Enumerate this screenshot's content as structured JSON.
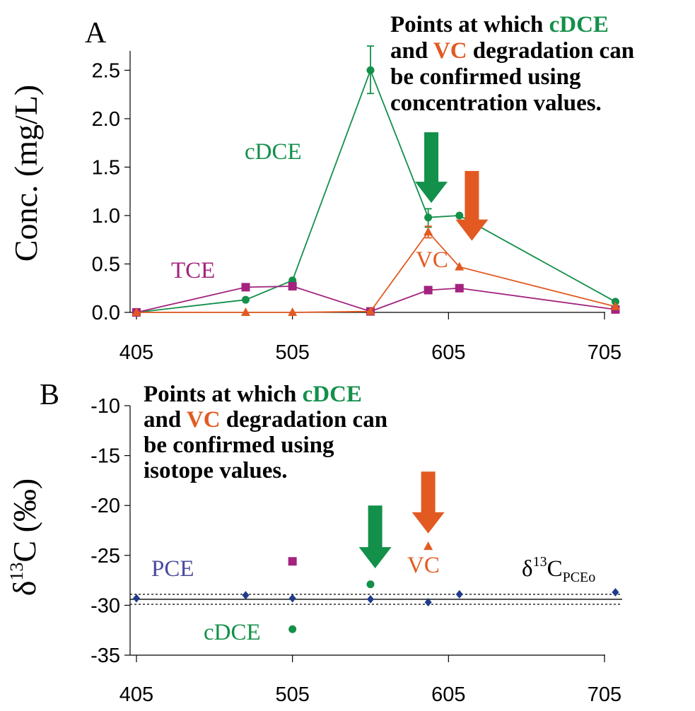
{
  "chart_data": [
    {
      "panel": "A",
      "type": "line",
      "ylabel": "Conc. (mg/L)",
      "xlim": [
        405,
        715
      ],
      "ylim": [
        0,
        2.7
      ],
      "xticks": [
        "405",
        "505",
        "605",
        "705"
      ],
      "yticks": [
        "0.0",
        "0.5",
        "1.0",
        "1.5",
        "2.0",
        "2.5"
      ],
      "series": [
        {
          "name": "cDCE",
          "color": "#13904a",
          "marker": "circle",
          "points": [
            [
              405,
              0.0
            ],
            [
              475,
              0.13
            ],
            [
              505,
              0.33
            ],
            [
              555,
              2.5
            ],
            [
              592,
              0.98
            ],
            [
              612,
              1.0
            ],
            [
              712,
              0.11
            ]
          ],
          "errors": [
            [
              555,
              2.26,
              2.75
            ],
            [
              592,
              0.88,
              1.07
            ]
          ]
        },
        {
          "name": "TCE",
          "color": "#a3237e",
          "marker": "square",
          "points": [
            [
              405,
              0.0
            ],
            [
              475,
              0.26
            ],
            [
              505,
              0.27
            ],
            [
              555,
              0.01
            ],
            [
              592,
              0.23
            ],
            [
              612,
              0.25
            ],
            [
              712,
              0.03
            ]
          ]
        },
        {
          "name": "VC",
          "color": "#e25a22",
          "marker": "triangle",
          "points": [
            [
              405,
              0.0
            ],
            [
              475,
              0.0
            ],
            [
              505,
              0.0
            ],
            [
              555,
              0.01
            ],
            [
              592,
              0.83
            ],
            [
              612,
              0.47
            ],
            [
              712,
              0.06
            ]
          ],
          "errors": [
            [
              592,
              0.77,
              0.89
            ]
          ]
        }
      ],
      "annotation": {
        "lines": [
          [
            {
              "t": "Points at which ",
              "c": "#000000"
            },
            {
              "t": "cDCE",
              "c": "#13904a"
            }
          ],
          [
            {
              "t": "and ",
              "c": "#000000"
            },
            {
              "t": "VC",
              "c": "#e25a22"
            },
            {
              "t": " degradation can",
              "c": "#000000"
            }
          ],
          [
            {
              "t": "be confirmed using",
              "c": "#000000"
            }
          ],
          [
            {
              "t": "concentration values.",
              "c": "#000000"
            }
          ]
        ],
        "arrows": [
          {
            "color": "#13904a",
            "x": 594,
            "y_top": 1.86,
            "y_tip": 1.13
          },
          {
            "color": "#e25a22",
            "x": 620,
            "y_top": 1.46,
            "y_tip": 0.74
          }
        ]
      }
    },
    {
      "panel": "B",
      "type": "scatter",
      "ylabel": "δ13C (‰)",
      "xlim": [
        405,
        715
      ],
      "ylim": [
        -35,
        -10
      ],
      "xticks": [
        "405",
        "505",
        "605",
        "705"
      ],
      "yticks": [
        "-10",
        "-15",
        "-20",
        "-25",
        "-30",
        "-35"
      ],
      "series": [
        {
          "name": "PCE",
          "color": "#1f3b8c",
          "marker": "diamond",
          "points": [
            [
              405,
              -29.3
            ],
            [
              475,
              -29.0
            ],
            [
              505,
              -29.3
            ],
            [
              555,
              -29.4
            ],
            [
              592,
              -29.7
            ],
            [
              612,
              -28.9
            ],
            [
              712,
              -28.7
            ]
          ]
        },
        {
          "name": "",
          "color": "#a3237e",
          "marker": "square",
          "points": [
            [
              505,
              -25.6
            ]
          ]
        },
        {
          "name": "cDCE",
          "color": "#13904a",
          "marker": "circle",
          "points": [
            [
              505,
              -32.4
            ],
            [
              555,
              -27.9
            ]
          ]
        },
        {
          "name": "VC",
          "color": "#e25a22",
          "marker": "triangle",
          "points": [
            [
              592,
              -24.1
            ]
          ]
        }
      ],
      "reference": {
        "label": "δ13CPCEo",
        "mean": -29.4,
        "band": [
          -28.9,
          -29.9
        ]
      },
      "annotation": {
        "lines": [
          [
            {
              "t": "Points at which ",
              "c": "#000000"
            },
            {
              "t": "cDCE",
              "c": "#13904a"
            }
          ],
          [
            {
              "t": "and ",
              "c": "#000000"
            },
            {
              "t": "VC",
              "c": "#e25a22"
            },
            {
              "t": " degradation can",
              "c": "#000000"
            }
          ],
          [
            {
              "t": "be confirmed using",
              "c": "#000000"
            }
          ],
          [
            {
              "t": "isotope values.",
              "c": "#000000"
            }
          ]
        ],
        "arrows": [
          {
            "color": "#13904a",
            "x": 558,
            "y_top": -20.0,
            "y_tip": -26.3
          },
          {
            "color": "#e25a22",
            "x": 592,
            "y_top": -16.6,
            "y_tip": -22.8
          }
        ]
      }
    }
  ]
}
